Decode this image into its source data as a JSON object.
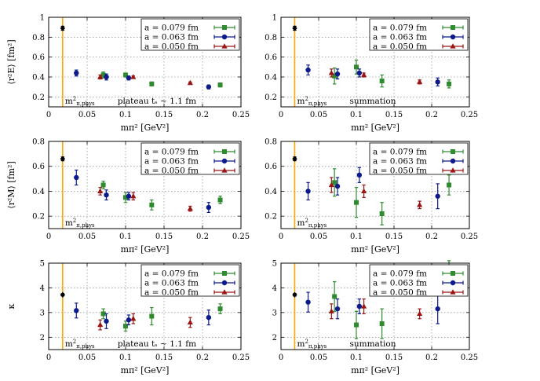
{
  "colors": {
    "a0079": "#2e8b2e",
    "a0063": "#0c1a8c",
    "a0050": "#9b1414",
    "phys_line": "#ffa500",
    "phys_point": "#000000"
  },
  "common": {
    "xlabel": "mπ² [GeV²]",
    "xticks": [
      "0",
      "0.05",
      "0.1",
      "0.15",
      "0.2",
      "0.25"
    ],
    "xlim": [
      0,
      0.25
    ],
    "phys_label": "m²π,phys",
    "legend": [
      "a = 0.079 fm",
      "a = 0.063 fm",
      "a = 0.050 fm"
    ]
  },
  "chart_data": [
    {
      "type": "scatter",
      "row": 0,
      "col": 0,
      "ylabel": "⟨r²E⟩ [fm²]",
      "ylim": [
        0.1,
        1.0
      ],
      "yticks": [
        "0.2",
        "0.4",
        "0.6",
        "0.8",
        "1"
      ],
      "note": "plateau tₛ ∼ 1.1 fm",
      "phys": {
        "x": 0.0182,
        "y": 0.89,
        "err": 0.02
      },
      "series": [
        {
          "name": "a = 0.079 fm",
          "marker": "square",
          "points": [
            [
              0.071,
              0.42,
              0.03
            ],
            [
              0.1,
              0.42,
              0.02
            ],
            [
              0.134,
              0.33,
              0.02
            ],
            [
              0.223,
              0.32,
              0.02
            ]
          ]
        },
        {
          "name": "a = 0.063 fm",
          "marker": "circle",
          "points": [
            [
              0.036,
              0.44,
              0.03
            ],
            [
              0.075,
              0.4,
              0.03
            ],
            [
              0.104,
              0.39,
              0.02
            ],
            [
              0.208,
              0.3,
              0.02
            ]
          ]
        },
        {
          "name": "a = 0.050 fm",
          "marker": "triangle",
          "points": [
            [
              0.067,
              0.4,
              0.02
            ],
            [
              0.11,
              0.4,
              0.01
            ],
            [
              0.184,
              0.34,
              0.01
            ]
          ]
        }
      ]
    },
    {
      "type": "scatter",
      "row": 0,
      "col": 1,
      "ylabel": "",
      "ylim": [
        0.1,
        1.0
      ],
      "yticks": [
        "0.2",
        "0.4",
        "0.6",
        "0.8",
        "1"
      ],
      "note": "summation",
      "phys": {
        "x": 0.0182,
        "y": 0.89,
        "err": 0.02
      },
      "series": [
        {
          "name": "a = 0.079 fm",
          "marker": "square",
          "points": [
            [
              0.071,
              0.41,
              0.08
            ],
            [
              0.1,
              0.5,
              0.07
            ],
            [
              0.134,
              0.36,
              0.06
            ],
            [
              0.223,
              0.33,
              0.04
            ]
          ]
        },
        {
          "name": "a = 0.063 fm",
          "marker": "circle",
          "points": [
            [
              0.036,
              0.47,
              0.05
            ],
            [
              0.075,
              0.43,
              0.05
            ],
            [
              0.104,
              0.44,
              0.04
            ],
            [
              0.208,
              0.35,
              0.04
            ]
          ]
        },
        {
          "name": "a = 0.050 fm",
          "marker": "triangle",
          "points": [
            [
              0.067,
              0.44,
              0.04
            ],
            [
              0.11,
              0.42,
              0.02
            ],
            [
              0.184,
              0.35,
              0.02
            ]
          ]
        }
      ]
    },
    {
      "type": "scatter",
      "row": 1,
      "col": 0,
      "ylabel": "⟨r²M⟩ [fm²]",
      "ylim": [
        0.1,
        0.8
      ],
      "yticks": [
        "0.2",
        "0.4",
        "0.6",
        "0.8"
      ],
      "note": "",
      "phys": {
        "x": 0.0182,
        "y": 0.66,
        "err": 0.015
      },
      "series": [
        {
          "name": "a = 0.079 fm",
          "marker": "square",
          "points": [
            [
              0.071,
              0.45,
              0.03
            ],
            [
              0.1,
              0.35,
              0.04
            ],
            [
              0.134,
              0.29,
              0.04
            ],
            [
              0.223,
              0.33,
              0.03
            ]
          ]
        },
        {
          "name": "a = 0.063 fm",
          "marker": "circle",
          "points": [
            [
              0.036,
              0.51,
              0.06
            ],
            [
              0.075,
              0.37,
              0.04
            ],
            [
              0.104,
              0.36,
              0.03
            ],
            [
              0.208,
              0.27,
              0.04
            ]
          ]
        },
        {
          "name": "a = 0.050 fm",
          "marker": "triangle",
          "points": [
            [
              0.067,
              0.4,
              0.03
            ],
            [
              0.11,
              0.36,
              0.03
            ],
            [
              0.184,
              0.26,
              0.02
            ]
          ]
        }
      ]
    },
    {
      "type": "scatter",
      "row": 1,
      "col": 1,
      "ylabel": "",
      "ylim": [
        0.1,
        0.8
      ],
      "yticks": [
        "0.2",
        "0.4",
        "0.6",
        "0.8"
      ],
      "note": "",
      "phys": {
        "x": 0.0182,
        "y": 0.66,
        "err": 0.015
      },
      "series": [
        {
          "name": "a = 0.079 fm",
          "marker": "square",
          "points": [
            [
              0.071,
              0.47,
              0.11
            ],
            [
              0.1,
              0.31,
              0.12
            ],
            [
              0.134,
              0.22,
              0.09
            ],
            [
              0.223,
              0.45,
              0.08
            ]
          ]
        },
        {
          "name": "a = 0.063 fm",
          "marker": "circle",
          "points": [
            [
              0.036,
              0.4,
              0.07
            ],
            [
              0.075,
              0.44,
              0.07
            ],
            [
              0.104,
              0.53,
              0.06
            ],
            [
              0.208,
              0.36,
              0.1
            ]
          ]
        },
        {
          "name": "a = 0.050 fm",
          "marker": "triangle",
          "points": [
            [
              0.067,
              0.45,
              0.06
            ],
            [
              0.11,
              0.4,
              0.05
            ],
            [
              0.184,
              0.29,
              0.03
            ]
          ]
        }
      ]
    },
    {
      "type": "scatter",
      "row": 2,
      "col": 0,
      "ylabel": "κ",
      "ylim": [
        1.5,
        5.0
      ],
      "yticks": [
        "2",
        "3",
        "4",
        "5"
      ],
      "note": "plateau tₛ ∼ 1.1 fm",
      "phys": {
        "x": 0.0182,
        "y": 3.72,
        "err": 0.05
      },
      "series": [
        {
          "name": "a = 0.079 fm",
          "marker": "square",
          "points": [
            [
              0.071,
              2.95,
              0.2
            ],
            [
              0.1,
              2.45,
              0.2
            ],
            [
              0.134,
              2.85,
              0.35
            ],
            [
              0.223,
              3.15,
              0.2
            ]
          ]
        },
        {
          "name": "a = 0.063 fm",
          "marker": "circle",
          "points": [
            [
              0.036,
              3.08,
              0.3
            ],
            [
              0.075,
              2.65,
              0.3
            ],
            [
              0.104,
              2.7,
              0.2
            ],
            [
              0.208,
              2.8,
              0.3
            ]
          ]
        },
        {
          "name": "a = 0.050 fm",
          "marker": "triangle",
          "points": [
            [
              0.067,
              2.5,
              0.2
            ],
            [
              0.11,
              2.75,
              0.2
            ],
            [
              0.184,
              2.6,
              0.2
            ]
          ]
        }
      ]
    },
    {
      "type": "scatter",
      "row": 2,
      "col": 1,
      "ylabel": "",
      "ylim": [
        1.5,
        5.0
      ],
      "yticks": [
        "2",
        "3",
        "4",
        "5"
      ],
      "note": "summation",
      "phys": {
        "x": 0.0182,
        "y": 3.72,
        "err": 0.05
      },
      "series": [
        {
          "name": "a = 0.079 fm",
          "marker": "square",
          "points": [
            [
              0.071,
              3.65,
              0.6
            ],
            [
              0.1,
              2.5,
              0.55
            ],
            [
              0.134,
              2.55,
              0.6
            ],
            [
              0.223,
              4.8,
              0.3
            ]
          ]
        },
        {
          "name": "a = 0.063 fm",
          "marker": "circle",
          "points": [
            [
              0.036,
              3.42,
              0.4
            ],
            [
              0.075,
              3.15,
              0.4
            ],
            [
              0.104,
              3.25,
              0.3
            ],
            [
              0.208,
              3.15,
              0.6
            ]
          ]
        },
        {
          "name": "a = 0.050 fm",
          "marker": "triangle",
          "points": [
            [
              0.067,
              3.05,
              0.3
            ],
            [
              0.11,
              3.25,
              0.3
            ],
            [
              0.184,
              2.95,
              0.2
            ]
          ]
        }
      ]
    }
  ]
}
